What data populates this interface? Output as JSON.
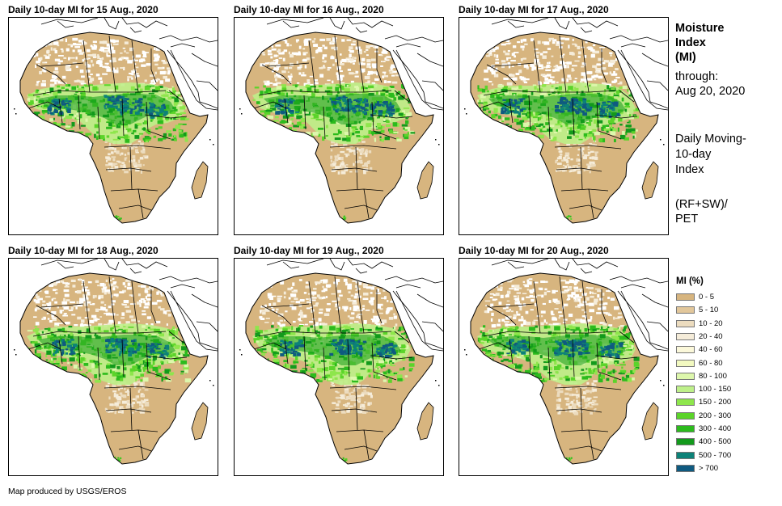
{
  "panels": [
    {
      "title": "Daily 10-day MI for 15 Aug., 2020",
      "variant": 0
    },
    {
      "title": "Daily 10-day MI for 16 Aug., 2020",
      "variant": 1
    },
    {
      "title": "Daily 10-day MI for 17 Aug., 2020",
      "variant": 2
    },
    {
      "title": "Daily 10-day MI for 18 Aug., 2020",
      "variant": 3
    },
    {
      "title": "Daily 10-day MI for 19 Aug., 2020",
      "variant": 4
    },
    {
      "title": "Daily 10-day MI for 20 Aug., 2020",
      "variant": 5
    }
  ],
  "sidebar": {
    "title_line1": "Moisture",
    "title_line2": "Index",
    "title_line3": "(MI)",
    "through_label": "through:",
    "through_date": "Aug 20, 2020",
    "desc_line1": "Daily Moving-",
    "desc_line2": "10-day",
    "desc_line3": "Index",
    "formula_line1": "(RF+SW)/",
    "formula_line2": "PET"
  },
  "legend": {
    "title": "MI (%)",
    "items": [
      {
        "label": "0 - 5",
        "color": "#d7b57f"
      },
      {
        "label": "5 - 10",
        "color": "#e2c79b"
      },
      {
        "label": "10 - 20",
        "color": "#ecdcbf"
      },
      {
        "label": "20 - 40",
        "color": "#f5ecd9"
      },
      {
        "label": "40 - 60",
        "color": "#fbf8da"
      },
      {
        "label": "60 - 80",
        "color": "#f2f9c0"
      },
      {
        "label": "80 - 100",
        "color": "#ddf7ac"
      },
      {
        "label": "100 - 150",
        "color": "#bef08a"
      },
      {
        "label": "150 - 200",
        "color": "#8ee64c"
      },
      {
        "label": "200 - 300",
        "color": "#5bd42a"
      },
      {
        "label": "300 - 400",
        "color": "#2cbb1d"
      },
      {
        "label": "400 - 500",
        "color": "#139a1c"
      },
      {
        "label": "500 - 700",
        "color": "#0c8278"
      },
      {
        "label": "> 700",
        "color": "#0f5a80"
      }
    ]
  },
  "credit": "Map produced by USGS/EROS"
}
